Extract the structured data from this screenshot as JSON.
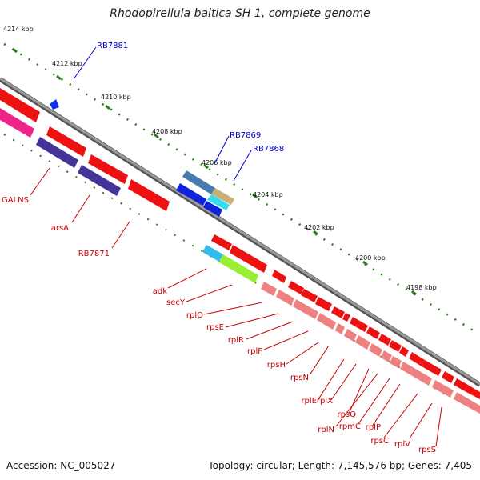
{
  "title": "Rhodopirellula baltica SH 1, complete genome",
  "footer": {
    "accession": "Accession: NC_005027",
    "topology": "Topology: circular; Length: 7,145,576 bp; Genes: 7,405"
  },
  "colors": {
    "backbone": "#7d7d7d",
    "tick": "#2a7a1a",
    "cds_label": "#cc0000",
    "gene_label": "#0000cc",
    "red": "#ee1111",
    "rrna_pink": "#ee8080"
  },
  "scale_labels": [
    "4214 kbp",
    "4212 kbp",
    "4210 kbp",
    "4208 kbp",
    "4206 kbp",
    "4204 kbp",
    "4202 kbp",
    "4200 kbp",
    "4198 kbp"
  ],
  "blue_labels": [
    "RB7881",
    "RB7869",
    "RB7868"
  ],
  "red_labels": [
    "GALNS",
    "arsA",
    "RB7871",
    "adk",
    "secY",
    "rplO",
    "rpsE",
    "rplR",
    "rplF",
    "rpsH",
    "rpsN",
    "rplE",
    "rplX",
    "rpsQ",
    "rplN",
    "rpmC",
    "rplP",
    "rpsC",
    "rplV",
    "rpsS"
  ]
}
